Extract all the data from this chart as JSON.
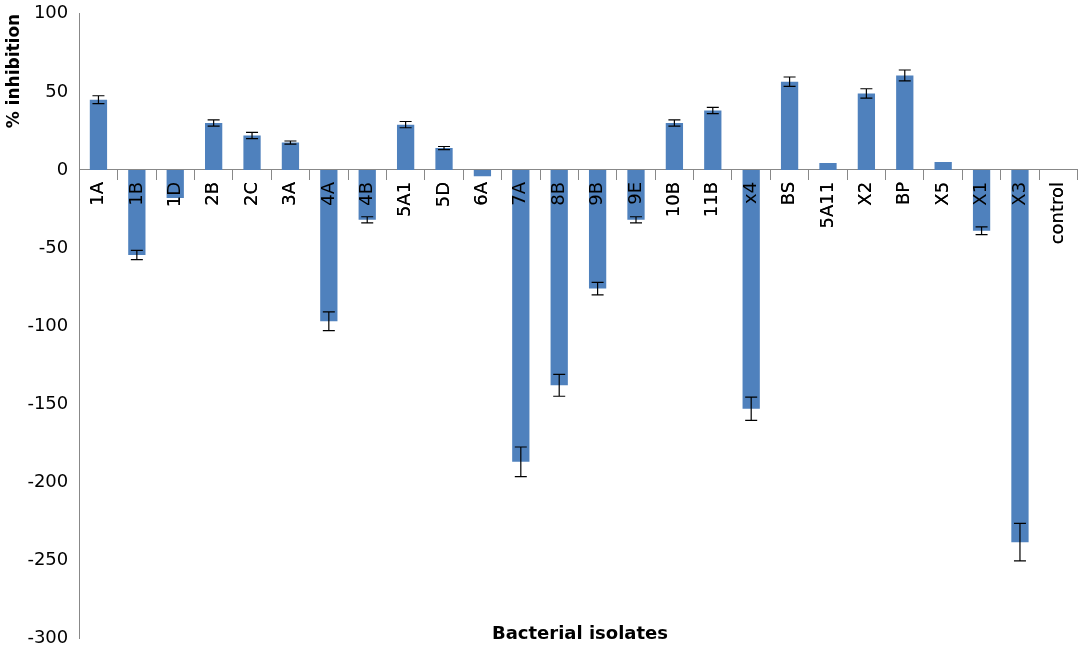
{
  "chart_data": {
    "type": "bar",
    "xlabel": "Bacterial isolates",
    "ylabel": "% inhibition",
    "categories": [
      "1A",
      "1B",
      "1D",
      "2B",
      "2C",
      "3A",
      "4A",
      "4B",
      "5A1",
      "5D",
      "6A",
      "7A",
      "8B",
      "9B",
      "9E",
      "10B",
      "11B",
      "x4",
      "BS",
      "5A11",
      "X2",
      "BP",
      "X5",
      "X1",
      "X3",
      "control"
    ],
    "values": [
      45,
      -54.5,
      -18,
      30,
      22,
      17.5,
      -97,
      -32,
      29,
      14,
      -4,
      -187,
      -138,
      -76,
      -32,
      30,
      38,
      -153,
      56.5,
      4.5,
      49,
      60.5,
      5,
      -39,
      -238.5,
      0
    ],
    "errors": [
      2.5,
      3,
      null,
      2,
      2,
      1,
      6,
      2,
      2,
      1,
      null,
      9.5,
      7,
      4,
      2,
      2,
      2,
      7.5,
      3,
      null,
      3,
      3.5,
      null,
      2.5,
      12,
      null
    ],
    "color": "#4f81bd",
    "ylim": [
      -300,
      100
    ],
    "yticks": [
      -300,
      -250,
      -200,
      -150,
      -100,
      -50,
      0,
      50,
      100
    ]
  }
}
